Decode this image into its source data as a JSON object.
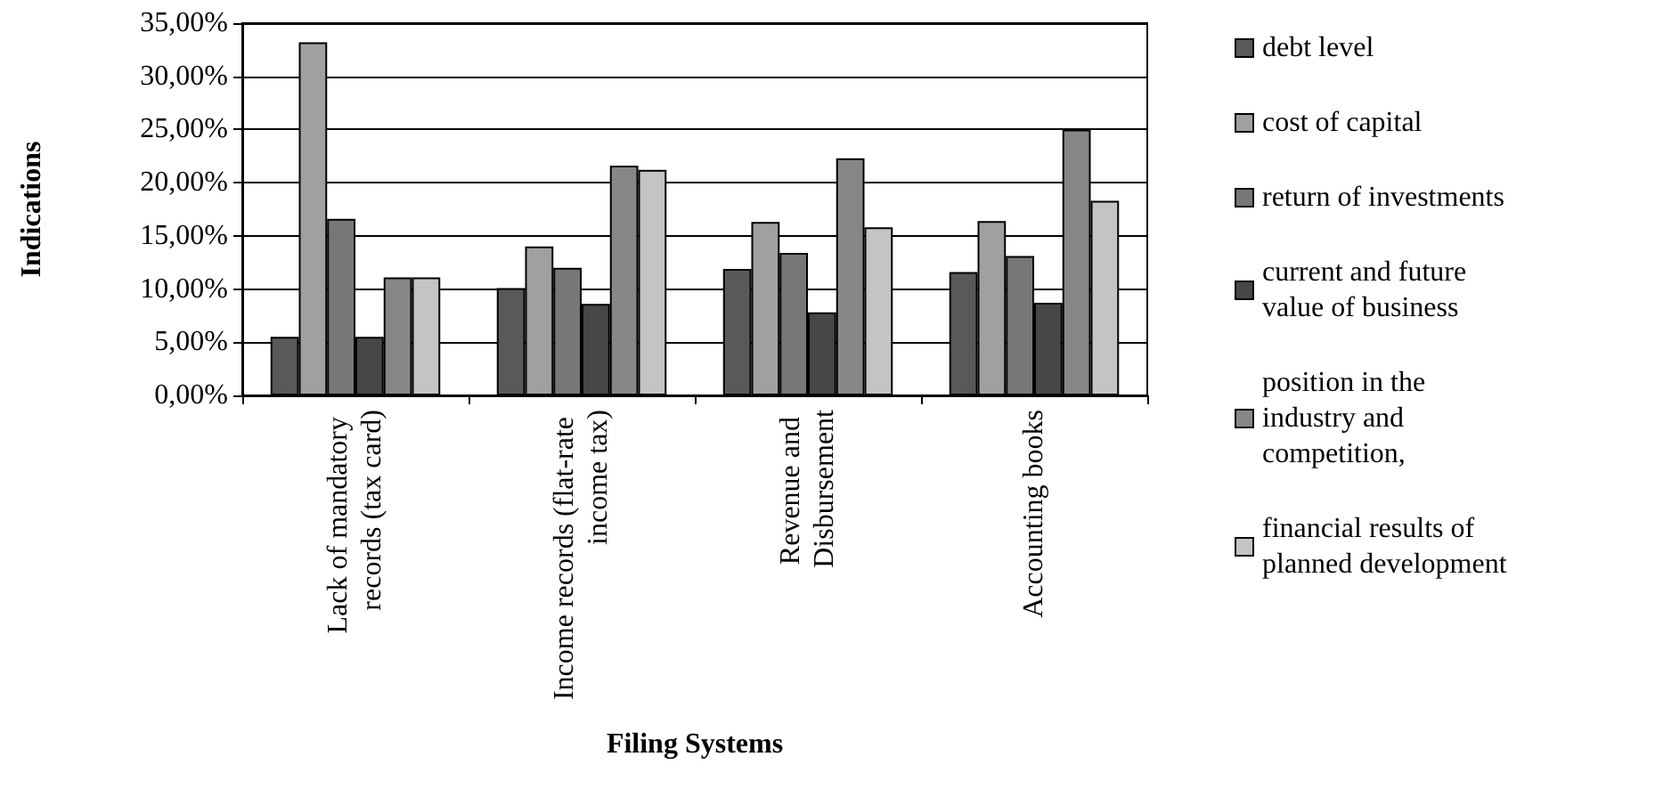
{
  "chart_data": {
    "type": "bar",
    "xlabel": "Filing Systems",
    "ylabel": "Indications",
    "categories": [
      "Lack of mandatory records (tax card)",
      "Income records (flat-rate income tax)",
      "Revenue and Disbursement",
      "Accounting books"
    ],
    "series": [
      {
        "name": "debt level",
        "color": "#595959",
        "values": [
          5.5,
          10.1,
          11.9,
          11.6
        ]
      },
      {
        "name": "cost of capital",
        "color": "#a0a0a0",
        "values": [
          33.2,
          14.0,
          16.3,
          16.4
        ]
      },
      {
        "name": "return of investments",
        "color": "#777777",
        "values": [
          16.6,
          12.0,
          13.4,
          13.1
        ]
      },
      {
        "name": "current and future value of business",
        "color": "#474747",
        "values": [
          5.5,
          8.6,
          7.8,
          8.7
        ]
      },
      {
        "name": "position in the industry and competition,",
        "color": "#878787",
        "values": [
          11.1,
          21.6,
          22.3,
          25.0
        ]
      },
      {
        "name": "financial results of planned development",
        "color": "#c4c4c4",
        "values": [
          11.1,
          21.2,
          15.8,
          18.3
        ]
      }
    ],
    "ylim": [
      0,
      35
    ],
    "yticks": [
      {
        "value": 0,
        "label": "0,00%"
      },
      {
        "value": 5,
        "label": "5,00%"
      },
      {
        "value": 10,
        "label": "10,00%"
      },
      {
        "value": 15,
        "label": "15,00%"
      },
      {
        "value": 20,
        "label": "20,00%"
      },
      {
        "value": 25,
        "label": "25,00%"
      },
      {
        "value": 30,
        "label": "30,00%"
      },
      {
        "value": 35,
        "label": "35,00%"
      }
    ],
    "grid": "y",
    "legend": "right"
  }
}
